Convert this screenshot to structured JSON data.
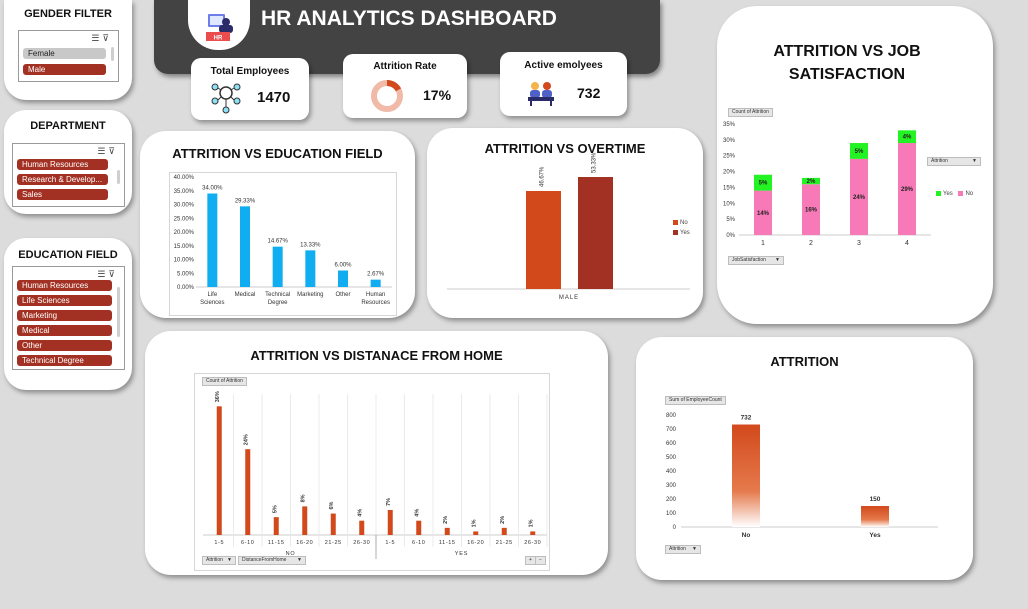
{
  "header": {
    "title": "HR ANALYTICS DASHBOARD",
    "logo_text": "HR"
  },
  "kpis": {
    "total_employees": {
      "label": "Total Employees",
      "value": "1470"
    },
    "attrition_rate": {
      "label": "Attrition Rate",
      "value": "17%",
      "fraction": 0.17
    },
    "active_employees": {
      "label": "Active emolyees",
      "value": "732"
    }
  },
  "slicers": {
    "gender": {
      "title": "GENDER FILTER",
      "items": [
        {
          "label": "Female",
          "selected": false
        },
        {
          "label": "Male",
          "selected": true
        }
      ]
    },
    "department": {
      "title": "DEPARTMENT",
      "items": [
        {
          "label": "Human Resources",
          "selected": true
        },
        {
          "label": "Research & Develop...",
          "selected": true
        },
        {
          "label": "Sales",
          "selected": true
        }
      ]
    },
    "education": {
      "title": "EDUCATION FIELD",
      "items": [
        {
          "label": "Human Resources",
          "selected": true
        },
        {
          "label": "Life Sciences",
          "selected": true
        },
        {
          "label": "Marketing",
          "selected": true
        },
        {
          "label": "Medical",
          "selected": true
        },
        {
          "label": "Other",
          "selected": true
        },
        {
          "label": "Technical Degree",
          "selected": true
        }
      ]
    }
  },
  "colors": {
    "bar_blue": "#10aef0",
    "orange": "#d2491c",
    "dark_red": "#a23123",
    "pink": "#f879b8",
    "green": "#23f223",
    "title_bar": "#434343"
  },
  "chart_data": [
    {
      "id": "education",
      "type": "bar",
      "title": "ATTRITION VS EDUCATION FIELD",
      "categories": [
        "Life Sciences",
        "Medical",
        "Technical Degree",
        "Marketing",
        "Other",
        "Human Resources"
      ],
      "values": [
        34.0,
        29.33,
        14.67,
        13.33,
        6.0,
        2.67
      ],
      "data_labels": [
        "34.00%",
        "29.33%",
        "14.67%",
        "13.33%",
        "6.00%",
        "2.67%"
      ],
      "y_ticks": [
        "0.00%",
        "5.00%",
        "10.00%",
        "15.00%",
        "20.00%",
        "25.00%",
        "30.00%",
        "35.00%",
        "40.00%"
      ],
      "ylim": [
        0,
        40
      ]
    },
    {
      "id": "overtime",
      "type": "bar",
      "title": "ATTRITION VS OVERTIME",
      "categories": [
        "MALE"
      ],
      "series": [
        {
          "name": "No",
          "values": [
            46.67
          ],
          "label": "46.67%"
        },
        {
          "name": "Yes",
          "values": [
            53.33
          ],
          "label": "53.33%"
        }
      ],
      "ylim": [
        0,
        60
      ]
    },
    {
      "id": "job_satisfaction",
      "type": "bar",
      "stacked": true,
      "title": "ATTRITION VS JOB SATISFACTION",
      "categories": [
        "1",
        "2",
        "3",
        "4"
      ],
      "series": [
        {
          "name": "No",
          "values": [
            14,
            16,
            24,
            29
          ]
        },
        {
          "name": "Yes",
          "values": [
            5,
            2,
            5,
            4
          ]
        }
      ],
      "y_ticks": [
        "0%",
        "5%",
        "10%",
        "15%",
        "20%",
        "25%",
        "30%",
        "35%"
      ],
      "ylim": [
        0,
        35
      ],
      "pivot_value": "Count of Attrition",
      "pivot_filter": "Attrition",
      "pivot_axis": "JobSatisfaction",
      "legend": [
        "Yes",
        "No"
      ]
    },
    {
      "id": "distance",
      "type": "bar",
      "title": "ATTRITION VS DISTANACE FROM HOME",
      "groups": [
        {
          "name": "NO",
          "categories": [
            "1-5",
            "6-10",
            "11-15",
            "16-20",
            "21-25",
            "26-30"
          ],
          "values": [
            36,
            24,
            5,
            8,
            6,
            4
          ],
          "labels": [
            "36%",
            "24%",
            "5%",
            "8%",
            "6%",
            "4%"
          ]
        },
        {
          "name": "YES",
          "categories": [
            "1-5",
            "6-10",
            "11-15",
            "16-20",
            "21-25",
            "26-30"
          ],
          "values": [
            7,
            4,
            2,
            1,
            2,
            1
          ],
          "labels": [
            "7%",
            "4%",
            "2%",
            "1%",
            "2%",
            "1%"
          ]
        }
      ],
      "ylim": [
        0,
        40
      ],
      "pivot_value": "Count of Attrition",
      "pivot_filter1": "Attrition",
      "pivot_filter2": "DistanceFromHome"
    },
    {
      "id": "attrition",
      "type": "bar",
      "title": "ATTRITION",
      "categories": [
        "No",
        "Yes"
      ],
      "values": [
        732,
        150
      ],
      "data_labels": [
        "732",
        "150"
      ],
      "y_ticks": [
        "0",
        "100",
        "200",
        "300",
        "400",
        "500",
        "600",
        "700",
        "800"
      ],
      "ylim": [
        0,
        800
      ],
      "pivot_value": "Sum of EmployeeCount",
      "pivot_filter": "Attrition"
    }
  ]
}
